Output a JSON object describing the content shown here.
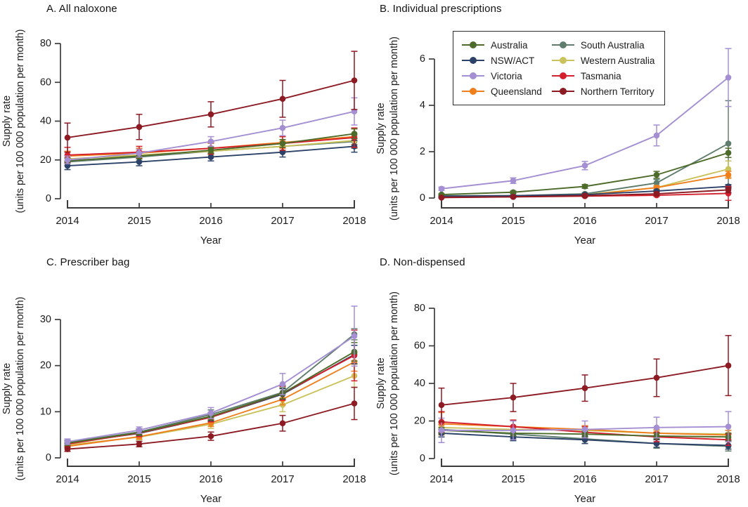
{
  "figure": {
    "background": "#ffffff",
    "text_color": "#1c1c1c",
    "axis_color": "#3d3d3d"
  },
  "legend": {
    "position": "top-left-of-panel-B",
    "entries": [
      {
        "label": "Australia",
        "color": "#4d6b2a"
      },
      {
        "label": "NSW/ACT",
        "color": "#2c4268"
      },
      {
        "label": "Victoria",
        "color": "#a48fd2"
      },
      {
        "label": "Queensland",
        "color": "#ef7f1c"
      },
      {
        "label": "South Australia",
        "color": "#5f7d6c"
      },
      {
        "label": "Western Australia",
        "color": "#cac25b"
      },
      {
        "label": "Tasmania",
        "color": "#d41f2c"
      },
      {
        "label": "Northern Territory",
        "color": "#8c1b23"
      }
    ]
  },
  "draw_order": [
    "South Australia",
    "Western Australia",
    "Queensland",
    "NSW/ACT",
    "Tasmania",
    "Australia",
    "Victoria",
    "Northern Territory"
  ],
  "chart_data": [
    {
      "id": "A",
      "type": "line",
      "title": "A. All naloxone",
      "xlabel": "Year",
      "ylabel_line1": "Supply rate",
      "ylabel_line2": "(units per 100 000 population per month)",
      "x": [
        2014,
        2015,
        2016,
        2017,
        2018
      ],
      "ylim": [
        0,
        80
      ],
      "yticks": [
        0,
        20,
        40,
        60,
        80
      ],
      "grid": false,
      "series": [
        {
          "name": "Australia",
          "values": [
            19.5,
            22.0,
            25.0,
            28.5,
            33.5
          ],
          "errors": [
            1.5,
            1.5,
            1.5,
            2.0,
            2.5
          ]
        },
        {
          "name": "NSW/ACT",
          "values": [
            17.0,
            19.0,
            21.5,
            24.0,
            27.0
          ],
          "errors": [
            2.0,
            2.0,
            2.0,
            2.5,
            3.0
          ]
        },
        {
          "name": "Victoria",
          "values": [
            20.0,
            23.5,
            29.5,
            36.5,
            45.0
          ],
          "errors": [
            2.0,
            2.0,
            2.5,
            4.0,
            7.0
          ]
        },
        {
          "name": "Queensland",
          "values": [
            22.0,
            23.5,
            26.0,
            29.0,
            32.0
          ],
          "errors": [
            2.5,
            2.5,
            2.5,
            3.0,
            4.0
          ]
        },
        {
          "name": "South Australia",
          "values": [
            19.0,
            21.5,
            24.5,
            27.0,
            29.5
          ],
          "errors": [
            2.0,
            2.0,
            2.0,
            2.5,
            3.5
          ]
        },
        {
          "name": "Western Australia",
          "values": [
            20.5,
            22.5,
            24.5,
            27.0,
            30.0
          ],
          "errors": [
            2.0,
            2.0,
            2.0,
            2.5,
            3.5
          ]
        },
        {
          "name": "Tasmania",
          "values": [
            22.5,
            24.0,
            26.0,
            28.5,
            31.5
          ],
          "errors": [
            4.0,
            3.0,
            3.0,
            3.5,
            5.0
          ]
        },
        {
          "name": "Northern Territory",
          "values": [
            31.5,
            37.0,
            43.5,
            51.5,
            61.0
          ],
          "errors": [
            7.5,
            6.5,
            6.5,
            9.5,
            15.0
          ]
        }
      ]
    },
    {
      "id": "B",
      "type": "line",
      "title": "B. Individual prescriptions",
      "xlabel": "Year",
      "ylabel_line1": "Supply rate",
      "ylabel_line2": "(units per 100 000 population per month)",
      "x": [
        2014,
        2015,
        2016,
        2017,
        2018
      ],
      "ylim": [
        0,
        6
      ],
      "yticks": [
        0,
        2,
        4,
        6
      ],
      "grid": false,
      "legend_in_panel": true,
      "series": [
        {
          "name": "Australia",
          "values": [
            0.15,
            0.25,
            0.5,
            1.0,
            1.95
          ],
          "errors": [
            0.03,
            0.05,
            0.08,
            0.15,
            0.2
          ]
        },
        {
          "name": "NSW/ACT",
          "values": [
            0.08,
            0.1,
            0.15,
            0.3,
            0.5
          ],
          "errors": [
            0.02,
            0.02,
            0.03,
            0.05,
            0.08
          ]
        },
        {
          "name": "Victoria",
          "values": [
            0.4,
            0.75,
            1.4,
            2.7,
            5.2
          ],
          "errors": [
            0.07,
            0.12,
            0.18,
            0.45,
            1.25
          ]
        },
        {
          "name": "Queensland",
          "values": [
            0.05,
            0.07,
            0.12,
            0.45,
            1.0
          ],
          "errors": [
            0.02,
            0.02,
            0.03,
            0.08,
            0.15
          ]
        },
        {
          "name": "South Australia",
          "values": [
            0.1,
            0.1,
            0.18,
            0.65,
            2.35
          ],
          "errors": [
            0.03,
            0.03,
            0.05,
            0.15,
            1.85
          ]
        },
        {
          "name": "Western Australia",
          "values": [
            0.05,
            0.08,
            0.15,
            0.45,
            1.25
          ],
          "errors": [
            0.02,
            0.02,
            0.03,
            0.08,
            0.35
          ]
        },
        {
          "name": "Tasmania",
          "values": [
            0.03,
            0.05,
            0.08,
            0.12,
            0.2
          ],
          "errors": [
            0.02,
            0.02,
            0.03,
            0.05,
            0.3
          ]
        },
        {
          "name": "Northern Territory",
          "values": [
            0.02,
            0.05,
            0.1,
            0.18,
            0.35
          ],
          "errors": [
            0.02,
            0.03,
            0.05,
            0.08,
            0.12
          ]
        }
      ]
    },
    {
      "id": "C",
      "type": "line",
      "title": "C. Prescriber bag",
      "xlabel": "Year",
      "ylabel_line1": "Supply rate",
      "ylabel_line2": "(units per 100 000 population per month)",
      "x": [
        2014,
        2015,
        2016,
        2017,
        2018
      ],
      "ylim": [
        0,
        30
      ],
      "yticks": [
        0,
        10,
        20,
        30
      ],
      "grid": false,
      "series": [
        {
          "name": "Australia",
          "values": [
            3.2,
            5.5,
            9.0,
            14.0,
            23.0
          ],
          "errors": [
            0.5,
            0.6,
            0.8,
            1.2,
            2.0
          ]
        },
        {
          "name": "NSW/ACT",
          "values": [
            3.2,
            5.3,
            8.8,
            13.8,
            22.4
          ],
          "errors": [
            0.5,
            0.6,
            0.8,
            1.2,
            2.0
          ]
        },
        {
          "name": "Victoria",
          "values": [
            3.5,
            6.0,
            9.7,
            16.0,
            26.4
          ],
          "errors": [
            0.6,
            0.7,
            1.2,
            2.3,
            6.5
          ]
        },
        {
          "name": "Queensland",
          "values": [
            2.5,
            4.6,
            7.6,
            12.7,
            20.8
          ],
          "errors": [
            0.4,
            0.5,
            0.8,
            1.2,
            2.0
          ]
        },
        {
          "name": "South Australia",
          "values": [
            3.3,
            5.6,
            9.4,
            14.2,
            26.8
          ],
          "errors": [
            0.5,
            0.7,
            1.0,
            1.5,
            1.2
          ]
        },
        {
          "name": "Western Australia",
          "values": [
            2.8,
            4.5,
            7.3,
            11.5,
            17.8
          ],
          "errors": [
            0.5,
            0.6,
            0.9,
            1.5,
            2.5
          ]
        },
        {
          "name": "Tasmania",
          "values": [
            3.0,
            5.4,
            8.8,
            14.0,
            22.2
          ],
          "errors": [
            0.7,
            0.8,
            1.0,
            1.5,
            5.5
          ]
        },
        {
          "name": "Northern Territory",
          "values": [
            1.9,
            3.0,
            4.7,
            7.5,
            11.8
          ],
          "errors": [
            0.5,
            0.6,
            0.9,
            1.7,
            3.5
          ]
        }
      ]
    },
    {
      "id": "D",
      "type": "line",
      "title": "D. Non-dispensed",
      "xlabel": "Year",
      "ylabel_line1": "Supply rate",
      "ylabel_line2": "(units per 100 000 population per month)",
      "x": [
        2014,
        2015,
        2016,
        2017,
        2018
      ],
      "ylim": [
        0,
        80
      ],
      "yticks": [
        0,
        20,
        40,
        60,
        80
      ],
      "grid": false,
      "series": [
        {
          "name": "Australia",
          "values": [
            15.0,
            13.5,
            13.0,
            12.0,
            11.5
          ],
          "errors": [
            1.5,
            1.5,
            1.5,
            1.5,
            2.0
          ]
        },
        {
          "name": "NSW/ACT",
          "values": [
            13.5,
            11.5,
            10.0,
            8.0,
            7.0
          ],
          "errors": [
            2.0,
            2.0,
            2.0,
            2.0,
            2.0
          ]
        },
        {
          "name": "Victoria",
          "values": [
            15.0,
            15.0,
            15.5,
            16.5,
            17.0
          ],
          "errors": [
            6.5,
            5.0,
            4.5,
            5.5,
            8.0
          ]
        },
        {
          "name": "Queensland",
          "values": [
            18.5,
            17.0,
            15.5,
            13.5,
            12.5
          ],
          "errors": [
            6.0,
            3.5,
            2.0,
            2.0,
            2.5
          ]
        },
        {
          "name": "South Australia",
          "values": [
            15.5,
            13.0,
            10.5,
            8.0,
            6.5
          ],
          "errors": [
            2.5,
            2.5,
            2.5,
            2.5,
            2.5
          ]
        },
        {
          "name": "Western Australia",
          "values": [
            16.5,
            15.5,
            15.0,
            13.5,
            13.0
          ],
          "errors": [
            2.5,
            2.0,
            1.5,
            1.5,
            2.0
          ]
        },
        {
          "name": "Tasmania",
          "values": [
            19.5,
            17.0,
            14.0,
            11.5,
            10.0
          ],
          "errors": [
            5.5,
            3.5,
            3.0,
            2.5,
            3.0
          ]
        },
        {
          "name": "Northern Territory",
          "values": [
            28.5,
            32.5,
            37.5,
            43.0,
            49.5
          ],
          "errors": [
            9.0,
            7.5,
            7.0,
            10.0,
            16.0
          ]
        }
      ]
    }
  ]
}
